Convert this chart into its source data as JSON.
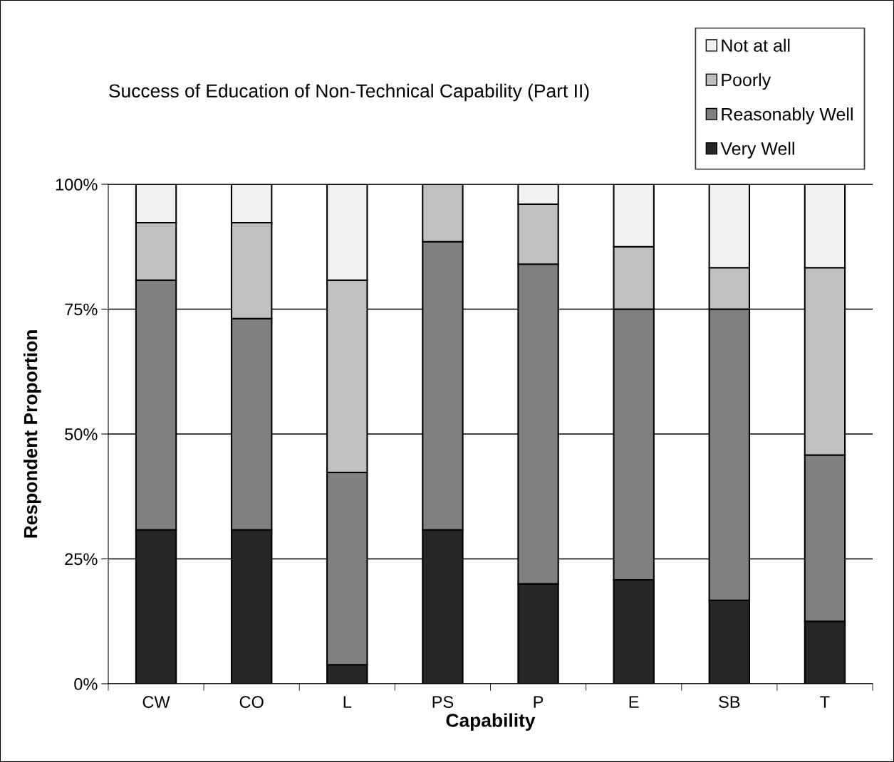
{
  "chart_data": {
    "type": "bar",
    "stacked": true,
    "title": "Success of Education of Non-Technical Capability (Part II)",
    "xlabel": "Capability",
    "ylabel": "Respondent Proportion",
    "categories": [
      "CW",
      "CO",
      "L",
      "PS",
      "P",
      "E",
      "SB",
      "T"
    ],
    "series": [
      {
        "name": "Very Well",
        "color": "#262626",
        "values": [
          30.8,
          30.8,
          3.8,
          30.8,
          20,
          20.8,
          16.7,
          12.5
        ]
      },
      {
        "name": "Reasonably Well",
        "color": "#808080",
        "values": [
          50,
          42.3,
          38.5,
          57.7,
          64,
          54.2,
          58.3,
          33.3
        ]
      },
      {
        "name": "Poorly",
        "color": "#c0c0c0",
        "values": [
          11.5,
          19.2,
          38.5,
          11.5,
          12,
          12.5,
          8.3,
          37.5
        ]
      },
      {
        "name": "Not at all",
        "color": "#f2f2f2",
        "values": [
          7.7,
          7.7,
          19.2,
          0,
          4,
          12.5,
          16.7,
          16.7
        ]
      }
    ],
    "ylim": [
      0,
      100
    ],
    "yticks": [
      {
        "value": 0,
        "label": "0%"
      },
      {
        "value": 25,
        "label": "25%"
      },
      {
        "value": 50,
        "label": "50%"
      },
      {
        "value": 75,
        "label": "75%"
      },
      {
        "value": 100,
        "label": "100%"
      }
    ],
    "grid": "y",
    "legend": "top right"
  }
}
